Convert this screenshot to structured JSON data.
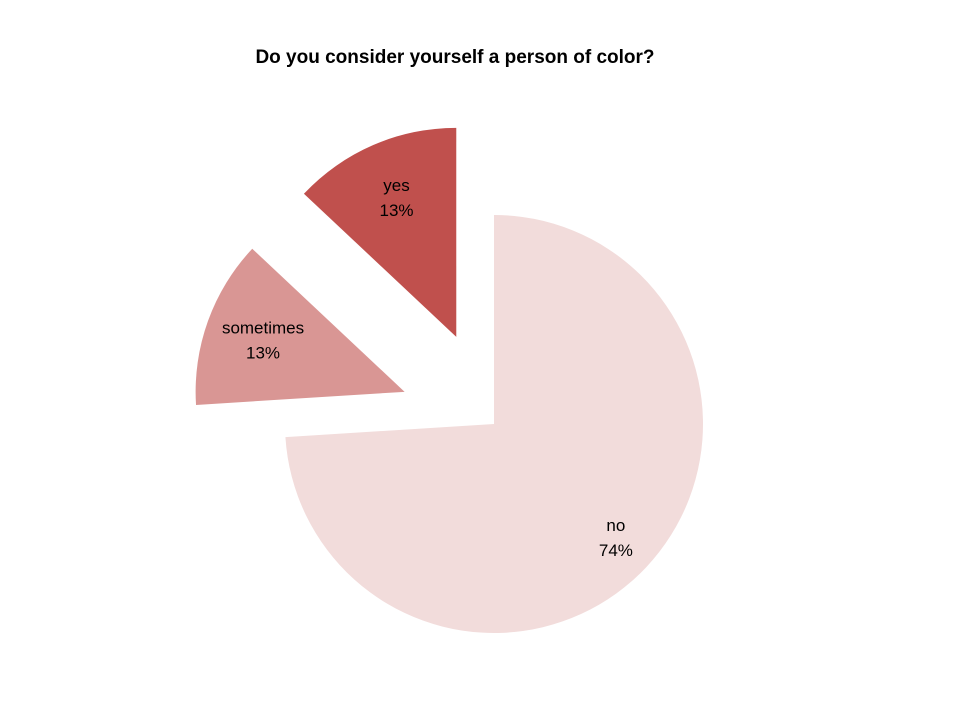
{
  "chart_data": {
    "type": "pie",
    "title": "Do you consider yourself a person of color?",
    "categories": [
      "no",
      "sometimes",
      "yes"
    ],
    "values": [
      74,
      13,
      13
    ],
    "value_labels": [
      "74%",
      "13%",
      "13%"
    ],
    "colors": [
      "#f2dcdb",
      "#d99694",
      "#c0504d"
    ]
  }
}
